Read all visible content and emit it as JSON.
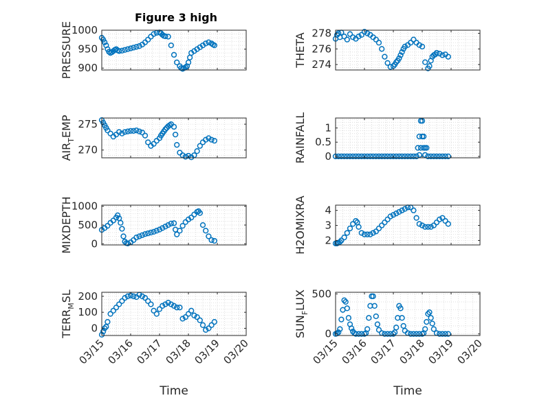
{
  "figure_title": "Figure 3 high",
  "colors": {
    "marker": "#0072BD",
    "axis": "#262626",
    "grid": "#D0D0D0"
  },
  "chart_data": [
    {
      "type": "scatter",
      "panel": "PRESSURE",
      "ylabel": "PRESSURE",
      "ylim": [
        895,
        1000
      ],
      "yticks": [
        900,
        950,
        1000
      ],
      "ytick_labels": [
        "900",
        "950",
        "1000"
      ],
      "xlim": [
        15,
        20
      ],
      "grid": "dotted",
      "title": "Figure 3 high",
      "x": [
        15.0,
        15.05,
        15.1,
        15.15,
        15.2,
        15.25,
        15.3,
        15.35,
        15.4,
        15.45,
        15.5,
        15.55,
        15.6,
        15.7,
        15.8,
        15.9,
        16.0,
        16.1,
        16.2,
        16.3,
        16.4,
        16.5,
        16.6,
        16.7,
        16.8,
        16.9,
        17.0,
        17.05,
        17.1,
        17.15,
        17.2,
        17.3,
        17.4,
        17.5,
        17.6,
        17.7,
        17.75,
        17.8,
        17.85,
        17.9,
        17.95,
        18.0,
        18.05,
        18.1,
        18.2,
        18.3,
        18.4,
        18.5,
        18.6,
        18.7,
        18.8,
        18.85,
        18.9
      ],
      "y": [
        980,
        975,
        968,
        960,
        950,
        943,
        940,
        942,
        945,
        948,
        950,
        947,
        945,
        946,
        948,
        950,
        952,
        954,
        956,
        958,
        962,
        968,
        975,
        983,
        990,
        993,
        994,
        992,
        988,
        985,
        984,
        983,
        960,
        935,
        915,
        905,
        900,
        898,
        900,
        902,
        905,
        915,
        928,
        940,
        945,
        950,
        955,
        960,
        965,
        968,
        965,
        962,
        960
      ]
    },
    {
      "type": "scatter",
      "panel": "THETA",
      "ylabel": "THETA",
      "ylim": [
        273.3,
        278.4
      ],
      "yticks": [
        274,
        276,
        278
      ],
      "ytick_labels": [
        "274",
        "276",
        "278"
      ],
      "xlim": [
        15,
        20
      ],
      "grid": "dotted",
      "x": [
        15.0,
        15.05,
        15.1,
        15.15,
        15.2,
        15.3,
        15.4,
        15.5,
        15.6,
        15.7,
        15.8,
        15.9,
        16.0,
        16.1,
        16.2,
        16.3,
        16.4,
        16.5,
        16.6,
        16.7,
        16.8,
        16.9,
        17.0,
        17.05,
        17.1,
        17.15,
        17.2,
        17.25,
        17.3,
        17.35,
        17.4,
        17.5,
        17.6,
        17.7,
        17.8,
        17.9,
        18.0,
        18.1,
        18.2,
        18.25,
        18.3,
        18.35,
        18.4,
        18.45,
        18.5,
        18.6,
        18.7,
        18.8,
        18.9
      ],
      "y": [
        277.3,
        277.8,
        278.0,
        277.5,
        278.1,
        277.6,
        277.2,
        277.9,
        277.5,
        277.3,
        277.6,
        277.8,
        278.2,
        278.0,
        277.8,
        277.5,
        277.2,
        276.8,
        276.0,
        275.0,
        274.2,
        273.7,
        273.8,
        274.0,
        274.3,
        274.5,
        274.8,
        275.2,
        275.6,
        276.0,
        276.3,
        276.5,
        276.8,
        277.2,
        276.8,
        276.5,
        276.3,
        274.3,
        273.5,
        273.8,
        274.5,
        275.0,
        275.2,
        275.3,
        275.5,
        275.4,
        275.2,
        275.3,
        275.0
      ]
    },
    {
      "type": "scatter",
      "panel": "AIR_TEMP",
      "ylabel": "AIR",
      "ylabel_sub": "T",
      "ylabel_rest": "EMP",
      "ylim": [
        268.5,
        276.2
      ],
      "yticks": [
        270,
        275
      ],
      "ytick_labels": [
        "270",
        "275"
      ],
      "xlim": [
        15,
        20
      ],
      "grid": "dotted",
      "x": [
        15.0,
        15.05,
        15.1,
        15.15,
        15.2,
        15.3,
        15.4,
        15.5,
        15.6,
        15.7,
        15.8,
        15.9,
        16.0,
        16.1,
        16.2,
        16.3,
        16.4,
        16.5,
        16.6,
        16.7,
        16.8,
        16.9,
        17.0,
        17.05,
        17.1,
        17.15,
        17.2,
        17.25,
        17.3,
        17.35,
        17.4,
        17.5,
        17.55,
        17.6,
        17.7,
        17.8,
        17.9,
        18.0,
        18.1,
        18.2,
        18.3,
        18.4,
        18.5,
        18.6,
        18.7,
        18.8,
        18.9
      ],
      "y": [
        275.8,
        275.3,
        274.8,
        274.3,
        273.8,
        273.2,
        272.6,
        273.0,
        273.5,
        273.2,
        273.5,
        273.6,
        273.7,
        273.7,
        273.8,
        273.6,
        273.4,
        272.8,
        271.5,
        270.8,
        271.2,
        271.8,
        272.3,
        272.8,
        273.2,
        273.6,
        274.0,
        274.3,
        274.6,
        274.8,
        275.0,
        274.5,
        273.0,
        271.0,
        269.5,
        269.0,
        268.7,
        268.9,
        268.6,
        269.0,
        269.8,
        270.8,
        271.5,
        272.0,
        272.3,
        272.0,
        271.8
      ]
    },
    {
      "type": "scatter",
      "panel": "RAINFALL",
      "ylabel": "RAINFALL",
      "ylim": [
        -0.05,
        1.35
      ],
      "yticks": [
        0,
        0.5,
        1
      ],
      "ytick_labels": [
        "0",
        "0.5",
        "1"
      ],
      "xlim": [
        15,
        20
      ],
      "grid": "dotted",
      "x": [
        15.0,
        15.1,
        15.2,
        15.3,
        15.4,
        15.5,
        15.6,
        15.7,
        15.8,
        15.9,
        16.0,
        16.1,
        16.2,
        16.3,
        16.4,
        16.5,
        16.6,
        16.7,
        16.8,
        16.9,
        17.0,
        17.1,
        17.2,
        17.3,
        17.4,
        17.5,
        17.6,
        17.7,
        17.8,
        17.85,
        17.9,
        17.95,
        18.0,
        18.05,
        18.1,
        18.15,
        18.2,
        18.3,
        18.4,
        18.5,
        18.6,
        18.7,
        18.8,
        18.9,
        17.9,
        17.95,
        18.0,
        18.05,
        18.1
      ],
      "y": [
        0,
        0,
        0,
        0,
        0,
        0,
        0,
        0,
        0,
        0,
        0,
        0,
        0,
        0,
        0,
        0,
        0,
        0,
        0,
        0,
        0,
        0,
        0,
        0,
        0,
        0,
        0,
        0,
        0,
        0.3,
        0.7,
        1.25,
        1.25,
        0.7,
        0.3,
        0.3,
        0,
        0,
        0,
        0,
        0,
        0,
        0,
        0,
        0.05,
        0.3,
        0.7,
        0.3,
        0.05
      ]
    },
    {
      "type": "scatter",
      "panel": "MIXDEPTH",
      "ylabel": "MIXDEPTH",
      "ylim": [
        -30,
        1030
      ],
      "yticks": [
        0,
        500,
        1000
      ],
      "ytick_labels": [
        "0",
        "500",
        "1000"
      ],
      "xlim": [
        15,
        20
      ],
      "grid": "dotted",
      "x": [
        15.0,
        15.1,
        15.2,
        15.3,
        15.4,
        15.5,
        15.55,
        15.6,
        15.65,
        15.7,
        15.75,
        15.8,
        15.85,
        15.9,
        16.0,
        16.1,
        16.2,
        16.3,
        16.4,
        16.5,
        16.6,
        16.7,
        16.8,
        16.9,
        17.0,
        17.1,
        17.2,
        17.3,
        17.4,
        17.5,
        17.55,
        17.6,
        17.7,
        17.8,
        17.9,
        18.0,
        18.1,
        18.2,
        18.3,
        18.35,
        18.4,
        18.5,
        18.6,
        18.7,
        18.8,
        18.9
      ],
      "y": [
        370,
        420,
        480,
        560,
        620,
        700,
        760,
        680,
        560,
        400,
        200,
        60,
        20,
        10,
        40,
        100,
        170,
        200,
        230,
        260,
        280,
        300,
        320,
        350,
        380,
        420,
        460,
        500,
        540,
        550,
        380,
        250,
        350,
        480,
        580,
        650,
        700,
        780,
        850,
        870,
        820,
        500,
        350,
        200,
        100,
        80
      ]
    },
    {
      "type": "scatter",
      "panel": "H2OMIXRA",
      "ylabel": "H2OMIXRA",
      "ylim": [
        1.7,
        4.35
      ],
      "yticks": [
        2,
        3,
        4
      ],
      "ytick_labels": [
        "2",
        "3",
        "4"
      ],
      "xlim": [
        15,
        20
      ],
      "grid": "dotted",
      "x": [
        15.0,
        15.05,
        15.1,
        15.15,
        15.2,
        15.3,
        15.4,
        15.5,
        15.6,
        15.7,
        15.75,
        15.8,
        15.9,
        16.0,
        16.1,
        16.2,
        16.3,
        16.4,
        16.5,
        16.6,
        16.7,
        16.8,
        16.9,
        17.0,
        17.1,
        17.2,
        17.3,
        17.4,
        17.5,
        17.6,
        17.7,
        17.8,
        17.9,
        18.0,
        18.1,
        18.2,
        18.3,
        18.4,
        18.5,
        18.6,
        18.7,
        18.8,
        18.9
      ],
      "y": [
        1.8,
        1.8,
        1.85,
        1.9,
        2.0,
        2.2,
        2.5,
        2.8,
        3.1,
        3.3,
        3.2,
        2.9,
        2.5,
        2.4,
        2.4,
        2.4,
        2.5,
        2.6,
        2.8,
        3.0,
        3.2,
        3.4,
        3.6,
        3.7,
        3.8,
        3.9,
        4.0,
        4.1,
        4.2,
        4.2,
        4.0,
        3.5,
        3.1,
        3.0,
        2.9,
        2.9,
        2.9,
        3.0,
        3.2,
        3.4,
        3.5,
        3.3,
        3.1
      ]
    },
    {
      "type": "scatter",
      "panel": "TERR_MSL",
      "ylabel": "TERR",
      "ylabel_sub": "M",
      "ylabel_rest": "SL",
      "ylim": [
        -45,
        225
      ],
      "yticks": [
        0,
        100,
        200
      ],
      "ytick_labels": [
        "0",
        "100",
        "200"
      ],
      "xlim": [
        15,
        20
      ],
      "grid": "dotted",
      "xlabel": "Time",
      "xticks": [
        15,
        16,
        17,
        18,
        19,
        20
      ],
      "xtick_labels": [
        "03/15",
        "03/16",
        "03/17",
        "03/18",
        "03/19",
        "03/20"
      ],
      "x": [
        15.0,
        15.05,
        15.1,
        15.15,
        15.2,
        15.3,
        15.4,
        15.5,
        15.6,
        15.7,
        15.8,
        15.9,
        16.0,
        16.1,
        16.2,
        16.3,
        16.4,
        16.5,
        16.6,
        16.7,
        16.8,
        16.9,
        17.0,
        17.1,
        17.2,
        17.3,
        17.4,
        17.5,
        17.6,
        17.7,
        17.8,
        17.9,
        18.0,
        18.1,
        18.2,
        18.3,
        18.4,
        18.5,
        18.6,
        18.7,
        18.8,
        18.9
      ],
      "y": [
        -40,
        -20,
        0,
        10,
        40,
        90,
        110,
        130,
        150,
        170,
        190,
        200,
        205,
        200,
        195,
        210,
        200,
        190,
        170,
        150,
        110,
        90,
        120,
        140,
        150,
        160,
        150,
        140,
        130,
        130,
        60,
        70,
        90,
        110,
        80,
        70,
        50,
        20,
        -10,
        0,
        20,
        40
      ]
    },
    {
      "type": "scatter",
      "panel": "SUN_FLUX",
      "ylabel": "SUN",
      "ylabel_sub": "F",
      "ylabel_rest": "LUX",
      "ylim": [
        -20,
        520
      ],
      "yticks": [
        0,
        500
      ],
      "ytick_labels": [
        "0",
        "500"
      ],
      "xlim": [
        15,
        20
      ],
      "grid": "dotted",
      "xlabel": "Time",
      "xticks": [
        15,
        16,
        17,
        18,
        19,
        20
      ],
      "xtick_labels": [
        "03/15",
        "03/16",
        "03/17",
        "03/18",
        "03/19",
        "03/20"
      ],
      "x": [
        15.0,
        15.05,
        15.1,
        15.15,
        15.2,
        15.25,
        15.3,
        15.35,
        15.4,
        15.45,
        15.5,
        15.55,
        15.6,
        15.65,
        15.7,
        15.8,
        15.9,
        16.0,
        16.05,
        16.1,
        16.15,
        16.2,
        16.25,
        16.3,
        16.35,
        16.4,
        16.45,
        16.5,
        16.6,
        16.7,
        16.8,
        16.9,
        17.0,
        17.05,
        17.1,
        17.15,
        17.2,
        17.25,
        17.3,
        17.35,
        17.4,
        17.5,
        17.6,
        17.7,
        17.8,
        17.9,
        18.0,
        18.05,
        18.1,
        18.15,
        18.2,
        18.25,
        18.3,
        18.35,
        18.4,
        18.5,
        18.6,
        18.7,
        18.8,
        18.9
      ],
      "y": [
        0,
        5,
        20,
        60,
        180,
        300,
        420,
        400,
        320,
        200,
        120,
        70,
        30,
        10,
        0,
        0,
        0,
        0,
        10,
        60,
        200,
        350,
        470,
        470,
        350,
        220,
        120,
        50,
        10,
        0,
        0,
        0,
        0,
        20,
        80,
        200,
        350,
        320,
        200,
        100,
        40,
        10,
        0,
        0,
        0,
        0,
        0,
        10,
        60,
        150,
        250,
        270,
        200,
        130,
        60,
        10,
        0,
        0,
        0,
        0
      ]
    }
  ]
}
